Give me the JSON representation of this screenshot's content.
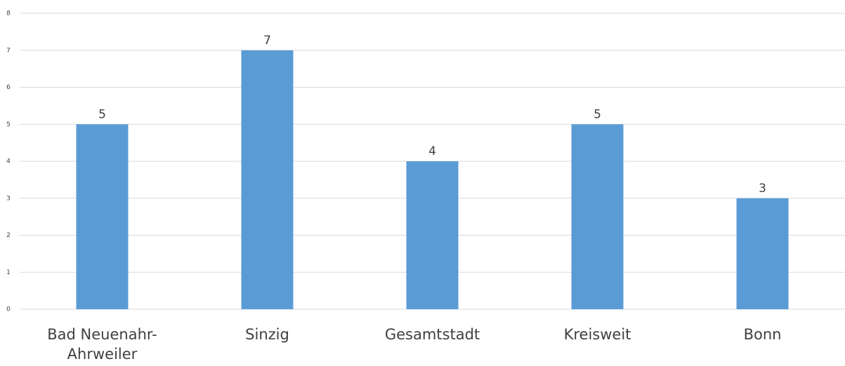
{
  "chart_data": {
    "type": "bar",
    "categories": [
      "Bad Neuenahr-Ahrweiler",
      "Sinzig",
      "Gesamtstadt",
      "Kreisweit",
      "Bonn"
    ],
    "values": [
      5,
      7,
      4,
      5,
      3
    ],
    "color": "#5b9bd5",
    "ylim": [
      0,
      8
    ],
    "yticks": [
      0,
      1,
      2,
      3,
      4,
      5,
      6,
      7,
      8
    ],
    "grid": true
  }
}
